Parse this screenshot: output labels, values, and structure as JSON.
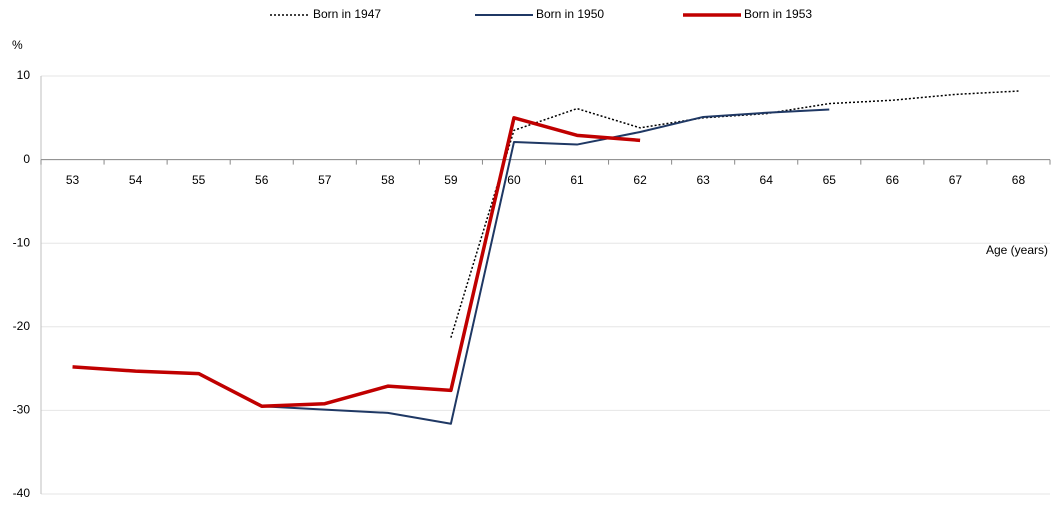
{
  "chart_data": {
    "type": "line",
    "y_label": "%",
    "x_label": "Age (years)",
    "categories": [
      "53",
      "54",
      "55",
      "56",
      "57",
      "58",
      "59",
      "60",
      "61",
      "62",
      "63",
      "64",
      "65",
      "66",
      "67",
      "68"
    ],
    "series": [
      {
        "name": "Born in 1947",
        "color": "#000000",
        "style": "dotted",
        "width": 1.5,
        "values": [
          null,
          null,
          null,
          null,
          null,
          null,
          -21.3,
          3.5,
          6.1,
          3.8,
          5.0,
          5.5,
          6.7,
          7.1,
          7.8,
          8.2
        ]
      },
      {
        "name": "Born in 1950",
        "color": "#1f3864",
        "style": "solid",
        "width": 2,
        "values": [
          null,
          null,
          null,
          -29.5,
          -29.9,
          -30.3,
          -31.6,
          2.1,
          1.8,
          3.3,
          5.1,
          5.6,
          6.0,
          null,
          null,
          null
        ]
      },
      {
        "name": "Born in 1953",
        "color": "#c00000",
        "style": "solid",
        "width": 3.5,
        "values": [
          -24.8,
          -25.3,
          -25.6,
          -29.5,
          -29.2,
          -27.1,
          -27.6,
          5.0,
          2.9,
          2.3,
          null,
          null,
          null,
          null,
          null,
          null
        ]
      }
    ],
    "ylim": [
      -40,
      10
    ],
    "yticks": [
      -40,
      -30,
      -20,
      -10,
      0,
      10
    ],
    "grid": true,
    "legend": "top"
  }
}
